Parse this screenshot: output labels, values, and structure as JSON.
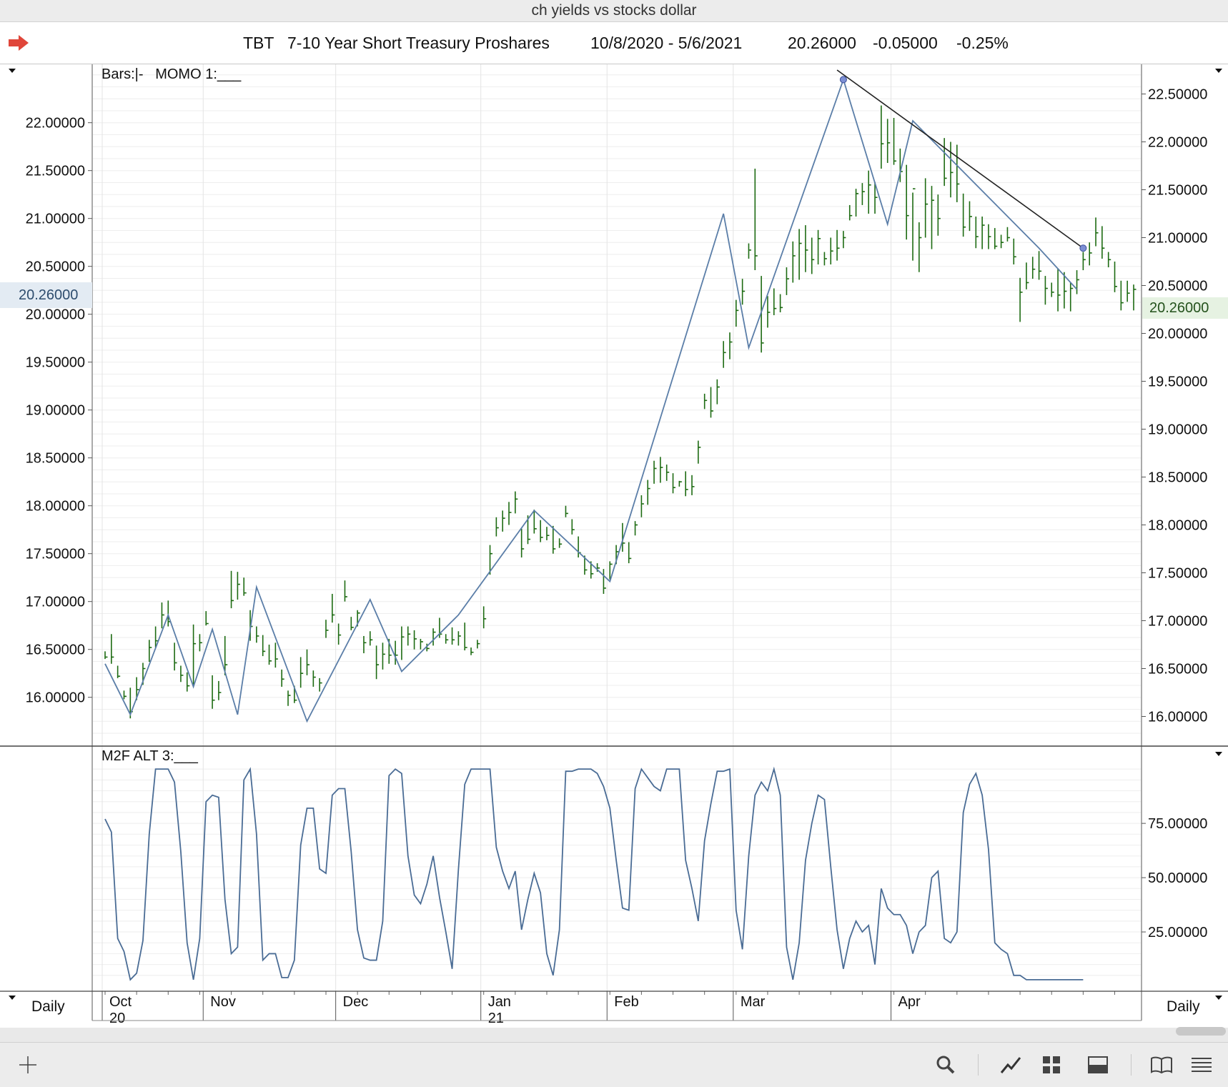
{
  "window": {
    "title": "ch yields vs stocks dollar"
  },
  "header": {
    "symbol": "TBT",
    "name": "7-10 Year Short Treasury Proshares",
    "date_range": "10/8/2020 - 5/6/2021",
    "last": "20.26000",
    "change": "-0.05000",
    "change_pct": "-0.25%"
  },
  "price_panel": {
    "indicator_label": "Bars:|-   MOMO 1:___"
  },
  "oscillator_panel": {
    "indicator_label": "M2F ALT 3:___"
  },
  "periodicity": {
    "left": "Daily",
    "right": "Daily"
  },
  "colors": {
    "bars": "#1d6b12",
    "momo_line": "#5b7ea8",
    "trend_line": "#222222",
    "osc_line": "#4a6c95",
    "pointer_arrow": "#e0463a"
  },
  "chart_data": [
    {
      "type": "line",
      "title": "TBT 7-10 Year Short Treasury Proshares",
      "bar_style": "HL bars with close tick",
      "x_axis": {
        "months": [
          "Oct",
          "Nov",
          "Dec",
          "Jan",
          "Feb",
          "Mar",
          "Apr"
        ],
        "years": [
          "20",
          "21"
        ],
        "month_start_index": [
          0,
          16,
          37,
          60,
          80,
          100,
          125
        ]
      },
      "left_axis": {
        "ticks": [
          "16.00000",
          "16.50000",
          "17.00000",
          "17.50000",
          "18.00000",
          "18.50000",
          "19.00000",
          "19.50000",
          "20.00000",
          "20.50000",
          "21.00000",
          "21.50000",
          "22.00000"
        ],
        "current": "20.26000",
        "ylim": [
          15.55,
          22.55
        ]
      },
      "right_axis": {
        "ticks": [
          "16.00000",
          "16.50000",
          "17.00000",
          "17.50000",
          "18.00000",
          "18.50000",
          "19.00000",
          "19.50000",
          "20.00000",
          "20.50000",
          "21.00000",
          "21.50000",
          "22.00000",
          "22.50000"
        ],
        "current": "20.26000",
        "ylim": [
          15.75,
          22.75
        ]
      },
      "bars": [
        [
          16.4,
          16.48,
          16.42
        ],
        [
          16.35,
          16.66,
          16.42
        ],
        [
          16.2,
          16.33,
          16.22
        ],
        [
          15.98,
          16.07,
          16.01
        ],
        [
          15.78,
          16.1,
          15.85
        ],
        [
          15.97,
          16.21,
          16.08
        ],
        [
          16.13,
          16.36,
          16.3
        ],
        [
          16.37,
          16.6,
          16.52
        ],
        [
          16.52,
          16.74,
          16.59
        ],
        [
          16.72,
          16.99,
          16.86
        ],
        [
          16.74,
          17.01,
          16.79
        ],
        [
          16.28,
          16.57,
          16.36
        ],
        [
          16.16,
          16.33,
          16.23
        ],
        [
          16.06,
          16.26,
          16.12
        ],
        [
          16.11,
          16.76,
          16.56
        ],
        [
          16.48,
          16.66,
          16.57
        ],
        [
          16.75,
          16.9,
          16.77
        ],
        [
          15.88,
          16.23,
          15.97
        ],
        [
          15.97,
          16.17,
          16.05
        ],
        [
          16.23,
          16.64,
          16.34
        ],
        [
          16.93,
          17.32,
          17.01
        ],
        [
          17.02,
          17.31,
          17.18
        ],
        [
          17.06,
          17.25,
          17.09
        ],
        [
          16.59,
          16.91,
          16.74
        ],
        [
          16.57,
          16.74,
          16.64
        ],
        [
          16.43,
          16.65,
          16.48
        ],
        [
          16.34,
          16.55,
          16.38
        ],
        [
          16.31,
          16.57,
          16.4
        ],
        [
          16.11,
          16.29,
          16.19
        ],
        [
          15.91,
          16.07,
          16.02
        ],
        [
          15.94,
          16.12,
          15.97
        ],
        [
          16.1,
          16.42,
          16.25
        ],
        [
          16.23,
          16.5,
          16.34
        ],
        [
          16.11,
          16.28,
          16.21
        ],
        [
          16.06,
          16.2,
          16.15
        ],
        [
          16.62,
          16.81,
          16.7
        ],
        [
          16.78,
          17.08,
          16.86
        ],
        [
          16.55,
          16.77,
          16.65
        ],
        [
          17.0,
          17.22,
          17.05
        ],
        [
          16.7,
          16.84,
          16.73
        ],
        [
          16.74,
          16.91,
          16.88
        ],
        [
          16.46,
          16.64,
          16.57
        ],
        [
          16.54,
          16.69,
          16.6
        ],
        [
          16.19,
          16.54,
          16.34
        ],
        [
          16.29,
          16.57,
          16.45
        ],
        [
          16.35,
          16.61,
          16.44
        ],
        [
          16.34,
          16.59,
          16.44
        ],
        [
          16.39,
          16.74,
          16.63
        ],
        [
          16.54,
          16.74,
          16.66
        ],
        [
          16.5,
          16.7,
          16.61
        ],
        [
          16.5,
          16.61,
          16.58
        ],
        [
          16.48,
          16.56,
          16.51
        ],
        [
          16.54,
          16.72,
          16.68
        ],
        [
          16.62,
          16.83,
          16.66
        ],
        [
          16.56,
          16.66,
          16.6
        ],
        [
          16.55,
          16.73,
          16.6
        ],
        [
          16.54,
          16.69,
          16.64
        ],
        [
          16.49,
          16.78,
          16.52
        ],
        [
          16.44,
          16.52,
          16.47
        ],
        [
          16.51,
          16.6,
          16.56
        ],
        [
          16.72,
          16.95,
          16.82
        ],
        [
          17.28,
          17.59,
          17.5
        ],
        [
          17.68,
          17.88,
          17.77
        ],
        [
          17.73,
          17.95,
          17.87
        ],
        [
          17.8,
          18.04,
          17.93
        ],
        [
          17.92,
          18.15,
          18.07
        ],
        [
          17.46,
          17.76,
          17.55
        ],
        [
          17.6,
          17.9,
          17.65
        ],
        [
          17.71,
          17.96,
          17.76
        ],
        [
          17.62,
          17.85,
          17.67
        ],
        [
          17.64,
          17.78,
          17.69
        ],
        [
          17.5,
          17.79,
          17.55
        ],
        [
          17.56,
          17.66,
          17.6
        ],
        [
          17.88,
          18.0,
          17.92
        ],
        [
          17.7,
          17.86,
          17.75
        ],
        [
          17.46,
          17.68,
          17.51
        ],
        [
          17.28,
          17.48,
          17.33
        ],
        [
          17.24,
          17.42,
          17.29
        ],
        [
          17.31,
          17.4,
          17.35
        ],
        [
          17.08,
          17.34,
          17.14
        ],
        [
          17.23,
          17.42,
          17.39
        ],
        [
          17.39,
          17.59,
          17.52
        ],
        [
          17.52,
          17.82,
          17.61
        ],
        [
          17.4,
          17.62,
          17.45
        ],
        [
          17.69,
          17.84,
          17.8
        ],
        [
          17.88,
          18.11,
          18.02
        ],
        [
          18.01,
          18.27,
          18.18
        ],
        [
          18.23,
          18.47,
          18.39
        ],
        [
          18.24,
          18.51,
          18.4
        ],
        [
          18.26,
          18.43,
          18.35
        ],
        [
          18.13,
          18.34,
          18.19
        ],
        [
          18.2,
          18.26,
          18.25
        ],
        [
          18.1,
          18.36,
          18.17
        ],
        [
          18.11,
          18.32,
          18.2
        ],
        [
          18.44,
          18.68,
          18.61
        ],
        [
          19.01,
          19.17,
          19.1
        ],
        [
          18.92,
          19.24,
          18.99
        ],
        [
          19.06,
          19.32,
          19.24
        ],
        [
          19.44,
          19.72,
          19.6
        ],
        [
          19.53,
          19.81,
          19.71
        ],
        [
          19.87,
          20.15,
          20.04
        ],
        [
          20.1,
          20.37,
          20.24
        ],
        [
          20.58,
          20.74,
          20.67
        ],
        [
          20.46,
          21.52,
          20.61
        ],
        [
          19.6,
          20.4,
          19.7
        ],
        [
          19.86,
          20.19,
          20.02
        ],
        [
          19.99,
          20.27,
          20.06
        ],
        [
          20.02,
          20.21,
          20.07
        ],
        [
          20.2,
          20.49,
          20.37
        ],
        [
          20.33,
          20.76,
          20.61
        ],
        [
          20.36,
          20.89,
          20.74
        ],
        [
          20.44,
          20.93,
          20.67
        ],
        [
          20.42,
          20.8,
          20.57
        ],
        [
          20.52,
          20.88,
          20.79
        ],
        [
          20.51,
          20.65,
          20.58
        ],
        [
          20.52,
          20.8,
          20.66
        ],
        [
          20.56,
          20.88,
          20.69
        ],
        [
          20.69,
          20.87,
          20.8
        ],
        [
          20.98,
          21.14,
          21.03
        ],
        [
          21.02,
          21.31,
          21.26
        ],
        [
          21.14,
          21.37,
          21.28
        ],
        [
          21.05,
          21.5,
          21.35
        ],
        [
          21.05,
          21.38,
          21.22
        ],
        [
          21.52,
          22.18,
          21.78
        ],
        [
          21.58,
          22.04,
          21.79
        ],
        [
          21.56,
          22.05,
          21.6
        ],
        [
          21.38,
          21.73,
          21.49
        ],
        [
          20.78,
          21.56,
          21.03
        ],
        [
          20.56,
          21.27,
          21.31
        ],
        [
          20.44,
          20.96,
          20.8
        ],
        [
          20.8,
          21.42,
          21.15
        ],
        [
          20.68,
          21.34,
          21.19
        ],
        [
          20.82,
          21.25,
          21.0
        ],
        [
          21.34,
          21.84,
          21.42
        ],
        [
          21.22,
          21.8,
          21.48
        ],
        [
          21.17,
          21.77,
          21.36
        ],
        [
          20.81,
          21.26,
          20.91
        ],
        [
          20.87,
          21.18,
          21.02
        ],
        [
          20.69,
          21.02,
          20.81
        ],
        [
          20.68,
          21.02,
          20.93
        ],
        [
          20.68,
          20.94,
          20.81
        ],
        [
          20.68,
          20.9,
          20.71
        ],
        [
          20.69,
          20.83,
          20.75
        ],
        [
          20.76,
          20.91,
          20.8
        ],
        [
          20.52,
          20.79,
          20.6
        ],
        [
          19.92,
          20.38,
          20.23
        ],
        [
          20.26,
          20.54,
          20.33
        ],
        [
          20.37,
          20.6,
          20.47
        ],
        [
          20.36,
          20.66,
          20.45
        ],
        [
          20.1,
          20.4,
          20.27
        ],
        [
          20.18,
          20.33,
          20.23
        ],
        [
          20.03,
          20.48,
          20.2
        ],
        [
          20.06,
          20.44,
          20.24
        ],
        [
          20.03,
          20.33,
          20.27
        ],
        [
          20.21,
          20.46,
          20.36
        ],
        [
          20.46,
          20.65,
          20.57
        ],
        [
          20.51,
          20.75,
          20.64
        ],
        [
          20.71,
          21.01,
          20.85
        ],
        [
          20.58,
          20.92,
          20.69
        ],
        [
          20.49,
          20.65,
          20.57
        ],
        [
          20.23,
          20.55,
          20.29
        ],
        [
          20.04,
          20.35,
          20.12
        ],
        [
          20.13,
          20.35,
          20.22
        ],
        [
          20.04,
          20.31,
          20.26
        ]
      ],
      "momo_line": {
        "name": "MOMO 1",
        "points": [
          [
            0,
            16.35
          ],
          [
            4,
            15.82
          ],
          [
            10,
            16.86
          ],
          [
            14,
            16.11
          ],
          [
            17,
            16.71
          ],
          [
            21,
            15.82
          ],
          [
            24,
            17.15
          ],
          [
            32,
            15.75
          ],
          [
            42,
            17.02
          ],
          [
            47,
            16.27
          ],
          [
            56,
            16.86
          ],
          [
            68,
            17.95
          ],
          [
            80,
            17.21
          ],
          [
            98,
            21.05
          ],
          [
            102,
            19.65
          ],
          [
            117,
            22.45
          ],
          [
            124,
            20.94
          ],
          [
            128,
            22.02
          ],
          [
            148,
            20.69
          ],
          [
            154,
            20.26
          ]
        ]
      },
      "trend_line": {
        "points": [
          [
            116,
            22.55
          ],
          [
            155,
            20.69
          ]
        ]
      },
      "pivot_markers": [
        [
          117,
          22.45
        ],
        [
          155,
          20.69
        ]
      ]
    },
    {
      "type": "line",
      "title": "M2F ALT 3",
      "right_axis": {
        "ticks": [
          "25.00000",
          "50.00000",
          "75.00000"
        ],
        "ylim": [
          0,
          104
        ]
      },
      "series": [
        {
          "name": "M2F ALT 3",
          "values": [
            77,
            71,
            22,
            16,
            3,
            6,
            21,
            70,
            100,
            100,
            100,
            94,
            62,
            20,
            3,
            22,
            85,
            88,
            87,
            40,
            15,
            18,
            95,
            100,
            70,
            12,
            15,
            15,
            4,
            4,
            12,
            65,
            82,
            82,
            54,
            52,
            88,
            91,
            91,
            62,
            26,
            13,
            12,
            12,
            30,
            97,
            100,
            98,
            60,
            42,
            38,
            47,
            60,
            41,
            25,
            8,
            54,
            93,
            100,
            100,
            100,
            100,
            64,
            53,
            45,
            53,
            26,
            40,
            52,
            43,
            15,
            5,
            26,
            99,
            99,
            100,
            100,
            100,
            98,
            92,
            82,
            58,
            36,
            35,
            91,
            100,
            96,
            92,
            90,
            100,
            100,
            100,
            58,
            45,
            30,
            67,
            84,
            99,
            99,
            100,
            35,
            17,
            60,
            88,
            94,
            90,
            100,
            88,
            18,
            3,
            20,
            58,
            75,
            88,
            86,
            55,
            26,
            8,
            22,
            30,
            25,
            28,
            10,
            45,
            36,
            33,
            33,
            28,
            15,
            25,
            28,
            50,
            53,
            22,
            20,
            25,
            80,
            93,
            98,
            88,
            63,
            20,
            17,
            15,
            5,
            5,
            3,
            3,
            3,
            3,
            3,
            3,
            3,
            3,
            3,
            3
          ]
        }
      ]
    }
  ]
}
